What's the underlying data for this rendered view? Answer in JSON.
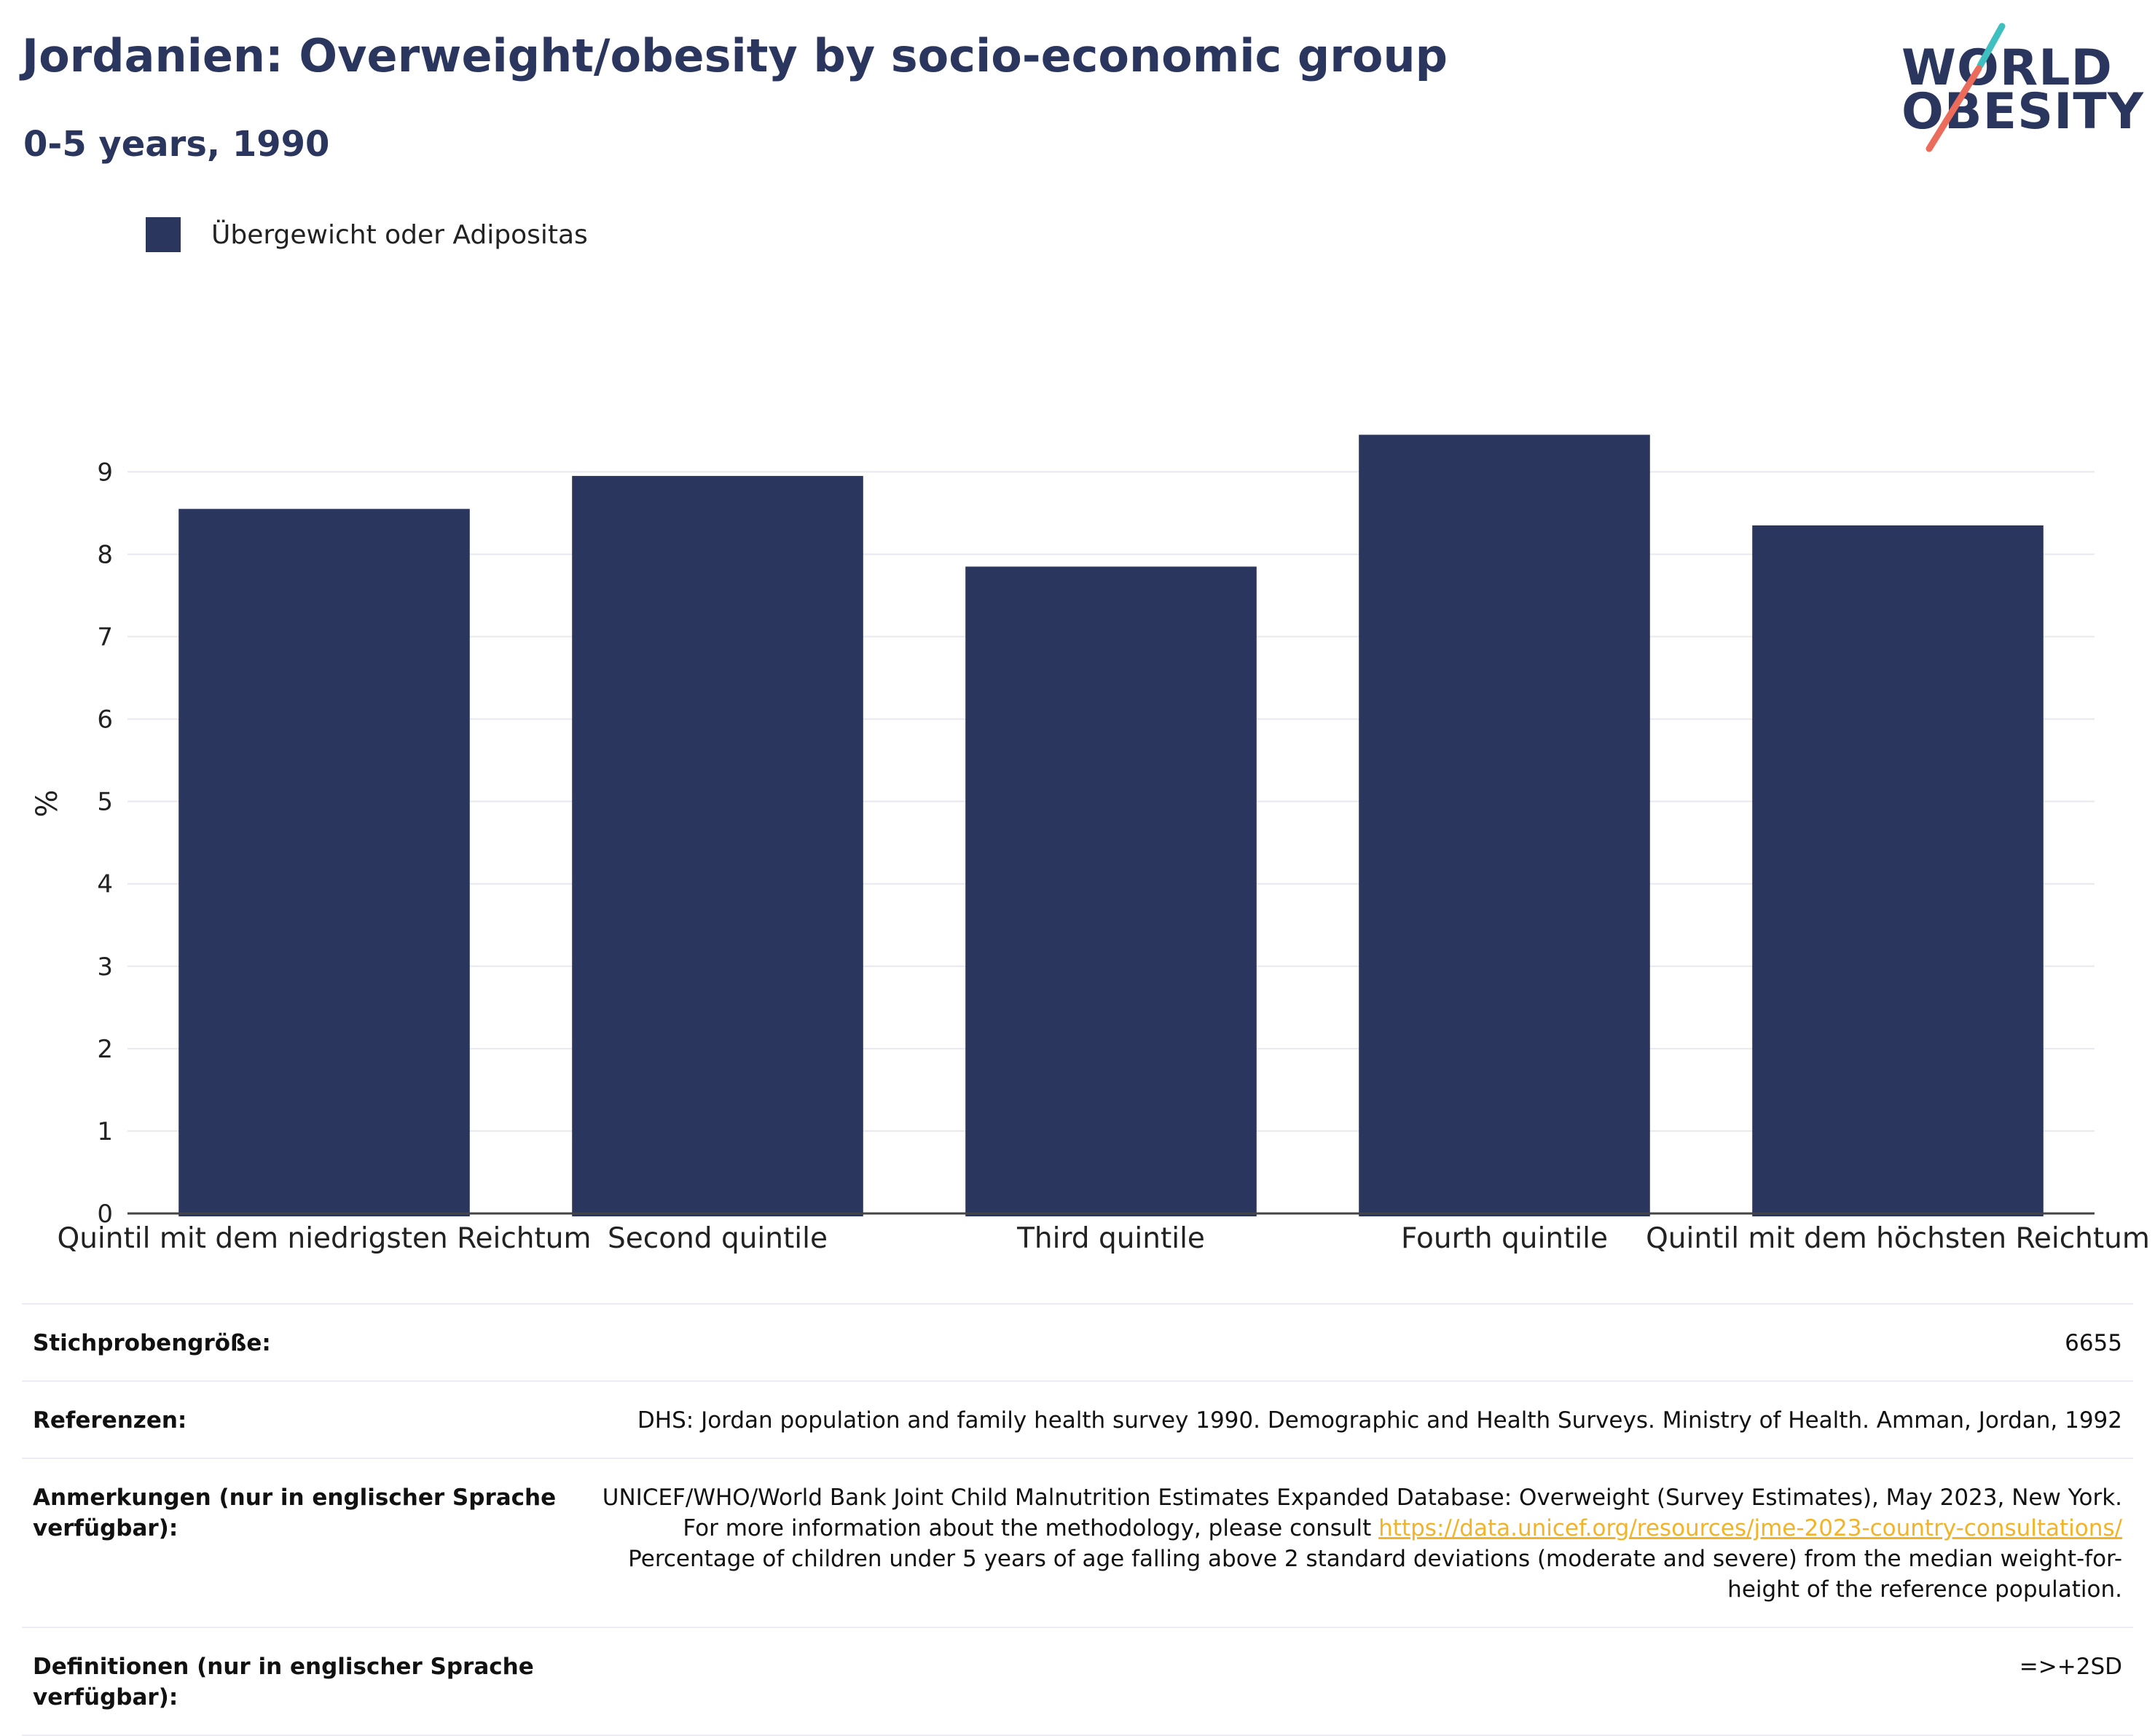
{
  "header": {
    "title": "Jordanien: Overweight/obesity by socio-economic group",
    "subtitle": "0-5 years, 1990"
  },
  "logo": {
    "line1": "WORLD",
    "line2": "OBESITY"
  },
  "colors": {
    "bar": "#2b365f",
    "title": "#2b365f",
    "logo_slash_teal": "#3fbfbf",
    "logo_slash_coral": "#ec6c5b",
    "link": "#f2b327"
  },
  "chart_data": {
    "type": "bar",
    "categories": [
      "Quintil mit dem niedrigsten Reichtum",
      "Second quintile",
      "Third quintile",
      "Fourth quintile",
      "Quintil mit dem höchsten Reichtum"
    ],
    "series": [
      {
        "name": "Übergewicht oder Adipositas",
        "values": [
          8.55,
          8.95,
          7.85,
          9.45,
          8.35
        ]
      }
    ],
    "ylabel": "%",
    "xlabel": "",
    "ylim": [
      0,
      9.95
    ],
    "yticks": [
      0,
      1,
      2,
      3,
      4,
      5,
      6,
      7,
      8,
      9
    ],
    "grid": true,
    "legend_position": "top-left"
  },
  "info_table": [
    {
      "key": "Stichprobengröße:",
      "value": "6655"
    },
    {
      "key": "Referenzen:",
      "value": "DHS: Jordan population and family health survey 1990. Demographic and Health Surveys. Ministry of Health. Amman, Jordan, 1992"
    },
    {
      "key": "Anmerkungen (nur in englischer Sprache verfügbar):",
      "value_before": "UNICEF/WHO/World Bank Joint Child Malnutrition Estimates Expanded Database: Overweight (Survey Estimates), May 2023, New York. For more information about the methodology, please consult ",
      "link": "https://data.unicef.org/resources/jme-2023-country-consultations/",
      "value_after": " Percentage of children under 5 years of age falling above 2 standard deviations (moderate and severe) from the median weight-for-height of the reference population."
    },
    {
      "key": "Definitionen (nur in englischer Sprache verfügbar):",
      "value": "=>+2SD"
    }
  ]
}
